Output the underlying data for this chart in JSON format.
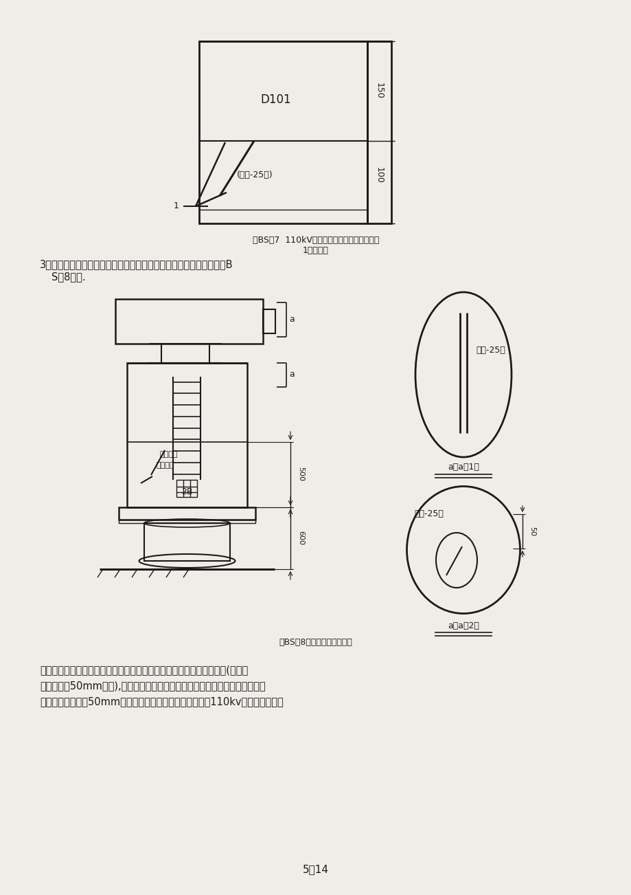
{
  "page_bg": "#f0ede8",
  "title1": "图BS－7  110kV少油断路器机构箱刷字示意图",
  "title1_sub": "1－基准线",
  "fig_caption2": "图BS－8主变压器刷字示意图",
  "body_line1": "主变用绝缘油标号刷在其油枕油标指示器的右侧或油位指示器的上方处(距油枕",
  "body_line2": "中心线以上50mm位置),如图示。当油位指示器处于油枕上方时，用油标号刷在",
  "body_line3": "其油枕中心线以下50mm处。主变端子箱名称的刷字位置与110kv压互端子箱相一",
  "page_num": "5／14",
  "line_color": "#1a1a1a",
  "text_color": "#1a1a1a"
}
